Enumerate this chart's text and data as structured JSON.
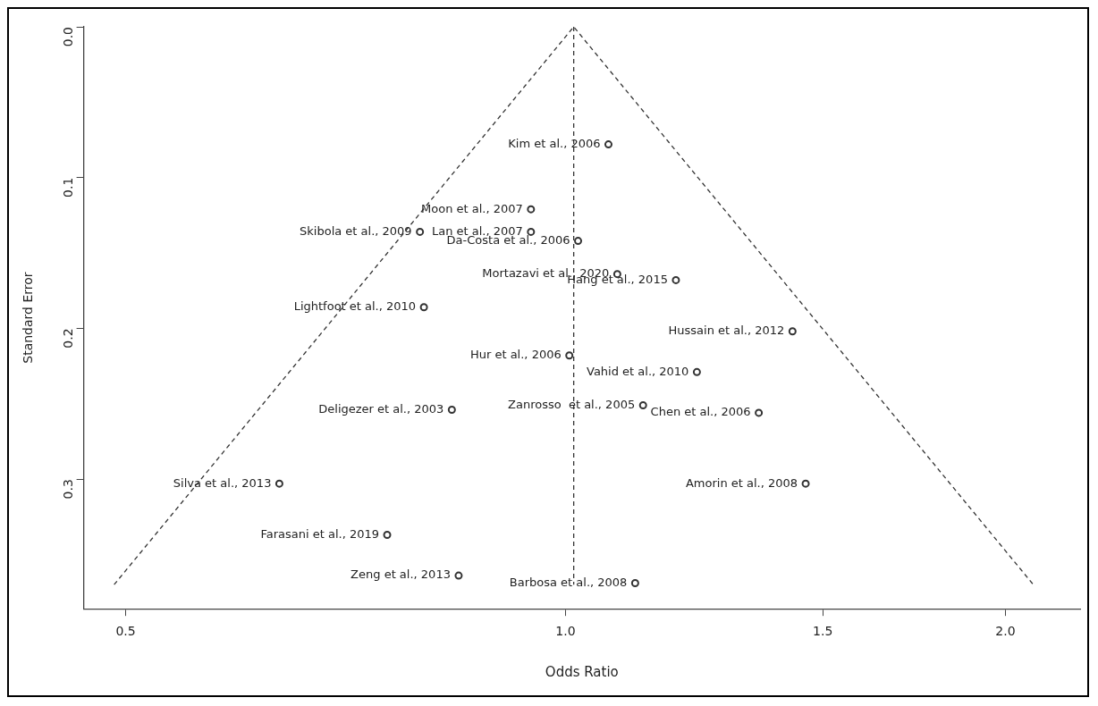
{
  "chart_data": {
    "type": "scatter",
    "xlabel": "Odds Ratio",
    "ylabel": "Standard Error",
    "log": "x",
    "xlim": [
      0.468,
      2.25
    ],
    "xticks": [
      {
        "value": 0.5,
        "label": "0.5"
      },
      {
        "value": 1,
        "label": "1.0"
      },
      {
        "value": 1.5,
        "label": "1.5"
      },
      {
        "value": 2,
        "label": "2.0"
      }
    ],
    "ylim": [
      0.386,
      0
    ],
    "yticks": [
      {
        "value": 0,
        "label": "0.0"
      },
      0.1,
      0.2,
      0.3
    ],
    "grid": false,
    "legend": false,
    "marker": "circle",
    "series": [
      {
        "type": "scatter",
        "color": "#333333",
        "x": [
          1.07,
          0.947,
          0.947,
          0.795,
          1.02,
          1.085,
          1.19,
          0.8,
          1.43,
          1.006,
          1.23,
          1.13,
          0.836,
          1.356,
          0.637,
          1.46,
          0.755,
          0.845,
          1.116
        ],
        "values": [
          0.078,
          0.121,
          0.136,
          0.136,
          0.142,
          0.164,
          0.168,
          0.186,
          0.202,
          0.218,
          0.229,
          0.251,
          0.254,
          0.256,
          0.303,
          0.303,
          0.337,
          0.364,
          0.369
        ]
      },
      {
        "type": "line",
        "color": "#333333",
        "line_style": "dashed",
        "marker": "none",
        "x": [
          0.491,
          1.013,
          2.09
        ],
        "values": [
          0.37,
          0,
          0.37
        ]
      },
      {
        "type": "line",
        "color": "#333333",
        "line_style": "dashed",
        "marker": "none",
        "x": [
          1.013,
          1.013
        ],
        "values": [
          0,
          0.37
        ]
      }
    ],
    "annotations": [
      {
        "text": "Kim et al., 2006",
        "x": 1.07,
        "y": 0.078
      },
      {
        "text": "Moon et al., 2007",
        "x": 0.947,
        "y": 0.121
      },
      {
        "text": "Lan et al., 2007",
        "x": 0.947,
        "y": 0.136
      },
      {
        "text": "Skibola et al., 2009",
        "x": 0.795,
        "y": 0.136
      },
      {
        "text": "Da-Costa et al., 2006",
        "x": 1.02,
        "y": 0.142
      },
      {
        "text": "Mortazavi et al., 2020",
        "x": 1.085,
        "y": 0.164
      },
      {
        "text": "Hang et al., 2015",
        "x": 1.19,
        "y": 0.168
      },
      {
        "text": "Lightfoot et al., 2010",
        "x": 0.8,
        "y": 0.186
      },
      {
        "text": "Hussain et al., 2012",
        "x": 1.43,
        "y": 0.202
      },
      {
        "text": "Hur et al., 2006",
        "x": 1.006,
        "y": 0.218
      },
      {
        "text": "Vahid et al., 2010",
        "x": 1.23,
        "y": 0.229
      },
      {
        "text": "Zanrosso  et al., 2005",
        "x": 1.13,
        "y": 0.251
      },
      {
        "text": "Deligezer et al., 2003",
        "x": 0.836,
        "y": 0.254
      },
      {
        "text": "Chen et al., 2006",
        "x": 1.356,
        "y": 0.256
      },
      {
        "text": "Silva et al., 2013",
        "x": 0.637,
        "y": 0.303
      },
      {
        "text": "Amorin et al., 2008",
        "x": 1.46,
        "y": 0.303
      },
      {
        "text": "Farasani et al., 2019",
        "x": 0.755,
        "y": 0.337
      },
      {
        "text": "Zeng et al., 2013",
        "x": 0.845,
        "y": 0.364
      },
      {
        "text": "Barbosa et al., 2008",
        "x": 1.116,
        "y": 0.369
      }
    ]
  }
}
